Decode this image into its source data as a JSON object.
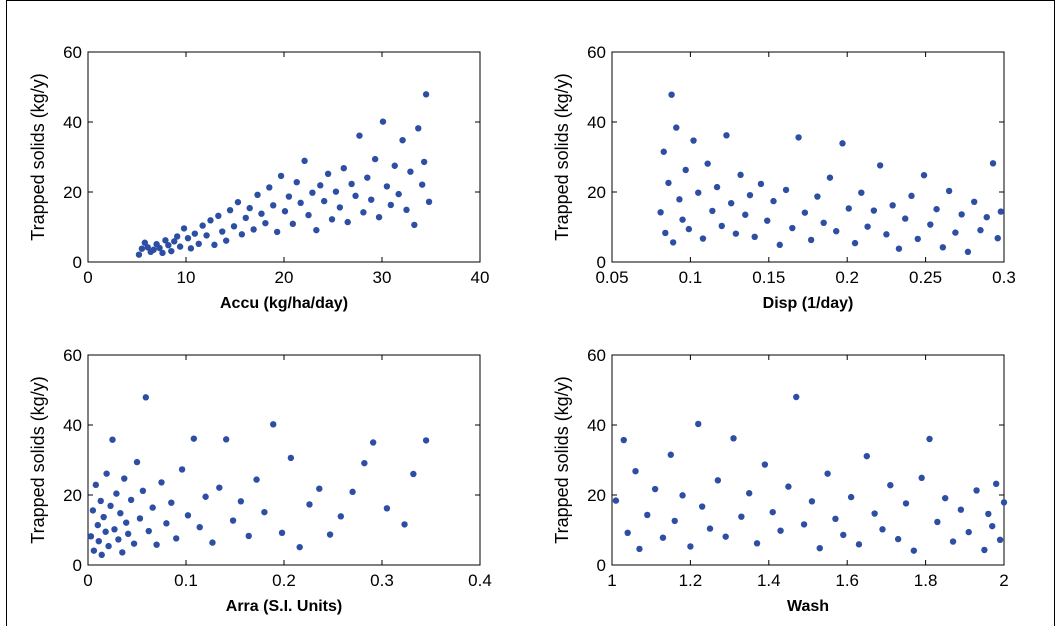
{
  "chart_data": [
    {
      "type": "scatter",
      "xlabel": "Accu (kg/ha/day)",
      "ylabel": "Trapped solids (kg/y)",
      "xlim": [
        0,
        40
      ],
      "ylim": [
        0,
        60
      ],
      "xticks": [
        "0",
        "10",
        "20",
        "30",
        "40"
      ],
      "yticks": [
        "0",
        "20",
        "40",
        "60"
      ],
      "color": "#2d4fa3",
      "points": [
        [
          5.2,
          2.1
        ],
        [
          5.5,
          3.8
        ],
        [
          5.8,
          5.5
        ],
        [
          6.1,
          4.2
        ],
        [
          6.4,
          2.9
        ],
        [
          6.7,
          3.5
        ],
        [
          7.0,
          5.1
        ],
        [
          7.3,
          4.0
        ],
        [
          7.6,
          2.6
        ],
        [
          7.9,
          6.2
        ],
        [
          8.2,
          4.8
        ],
        [
          8.5,
          3.1
        ],
        [
          8.8,
          5.9
        ],
        [
          9.1,
          7.3
        ],
        [
          9.4,
          4.4
        ],
        [
          9.8,
          9.6
        ],
        [
          10.2,
          6.8
        ],
        [
          10.5,
          3.9
        ],
        [
          10.9,
          8.1
        ],
        [
          11.3,
          5.2
        ],
        [
          11.7,
          10.4
        ],
        [
          12.1,
          7.6
        ],
        [
          12.5,
          11.9
        ],
        [
          12.9,
          4.9
        ],
        [
          13.3,
          13.2
        ],
        [
          13.7,
          8.7
        ],
        [
          14.1,
          6.1
        ],
        [
          14.5,
          14.8
        ],
        [
          14.9,
          10.2
        ],
        [
          15.3,
          17.1
        ],
        [
          15.7,
          7.9
        ],
        [
          16.1,
          12.6
        ],
        [
          16.5,
          15.4
        ],
        [
          16.9,
          9.3
        ],
        [
          17.3,
          19.2
        ],
        [
          17.7,
          13.8
        ],
        [
          18.1,
          11.1
        ],
        [
          18.5,
          21.3
        ],
        [
          18.9,
          16.2
        ],
        [
          19.3,
          8.6
        ],
        [
          19.7,
          24.6
        ],
        [
          20.1,
          14.5
        ],
        [
          20.5,
          18.7
        ],
        [
          20.9,
          10.9
        ],
        [
          21.3,
          22.8
        ],
        [
          21.7,
          16.9
        ],
        [
          22.1,
          28.9
        ],
        [
          22.5,
          13.4
        ],
        [
          22.9,
          19.8
        ],
        [
          23.3,
          9.1
        ],
        [
          23.7,
          21.9
        ],
        [
          24.1,
          17.4
        ],
        [
          24.5,
          25.2
        ],
        [
          24.9,
          12.2
        ],
        [
          25.3,
          20.1
        ],
        [
          25.7,
          15.6
        ],
        [
          26.1,
          26.8
        ],
        [
          26.5,
          11.4
        ],
        [
          26.9,
          22.3
        ],
        [
          27.3,
          18.9
        ],
        [
          27.7,
          36.1
        ],
        [
          28.1,
          14.2
        ],
        [
          28.5,
          24.1
        ],
        [
          28.9,
          17.8
        ],
        [
          29.3,
          29.4
        ],
        [
          29.7,
          12.8
        ],
        [
          30.1,
          40.1
        ],
        [
          30.5,
          21.6
        ],
        [
          30.9,
          16.3
        ],
        [
          31.3,
          27.5
        ],
        [
          31.7,
          19.4
        ],
        [
          32.1,
          34.8
        ],
        [
          32.5,
          14.9
        ],
        [
          32.9,
          25.8
        ],
        [
          33.3,
          10.6
        ],
        [
          33.7,
          38.2
        ],
        [
          34.1,
          22.1
        ],
        [
          34.5,
          47.9
        ],
        [
          34.8,
          17.2
        ],
        [
          34.3,
          28.6
        ]
      ]
    },
    {
      "type": "scatter",
      "xlabel": "Disp (1/day)",
      "ylabel": "Trapped solids (kg/y)",
      "xlim": [
        0.05,
        0.3
      ],
      "ylim": [
        0,
        60
      ],
      "xticks": [
        "0.05",
        "0.1",
        "0.15",
        "0.2",
        "0.25",
        "0.3"
      ],
      "yticks": [
        "0",
        "20",
        "40",
        "60"
      ],
      "color": "#2d4fa3",
      "points": [
        [
          0.081,
          14.2
        ],
        [
          0.083,
          31.5
        ],
        [
          0.084,
          8.3
        ],
        [
          0.086,
          22.6
        ],
        [
          0.088,
          47.8
        ],
        [
          0.089,
          5.6
        ],
        [
          0.091,
          38.4
        ],
        [
          0.093,
          17.9
        ],
        [
          0.095,
          12.1
        ],
        [
          0.097,
          26.3
        ],
        [
          0.099,
          9.4
        ],
        [
          0.102,
          34.7
        ],
        [
          0.105,
          19.8
        ],
        [
          0.108,
          6.7
        ],
        [
          0.111,
          28.1
        ],
        [
          0.114,
          14.6
        ],
        [
          0.117,
          21.4
        ],
        [
          0.12,
          10.3
        ],
        [
          0.123,
          36.2
        ],
        [
          0.126,
          16.8
        ],
        [
          0.129,
          8.1
        ],
        [
          0.132,
          24.9
        ],
        [
          0.135,
          13.5
        ],
        [
          0.138,
          19.1
        ],
        [
          0.141,
          7.2
        ],
        [
          0.145,
          22.3
        ],
        [
          0.149,
          11.8
        ],
        [
          0.153,
          17.4
        ],
        [
          0.157,
          4.9
        ],
        [
          0.161,
          20.6
        ],
        [
          0.165,
          9.7
        ],
        [
          0.169,
          35.6
        ],
        [
          0.173,
          14.1
        ],
        [
          0.177,
          6.3
        ],
        [
          0.181,
          18.7
        ],
        [
          0.185,
          11.2
        ],
        [
          0.189,
          24.1
        ],
        [
          0.193,
          8.8
        ],
        [
          0.197,
          33.9
        ],
        [
          0.201,
          15.3
        ],
        [
          0.205,
          5.4
        ],
        [
          0.209,
          19.8
        ],
        [
          0.213,
          10.1
        ],
        [
          0.217,
          14.7
        ],
        [
          0.221,
          27.6
        ],
        [
          0.225,
          7.9
        ],
        [
          0.229,
          16.2
        ],
        [
          0.233,
          3.8
        ],
        [
          0.237,
          12.4
        ],
        [
          0.241,
          18.9
        ],
        [
          0.245,
          6.6
        ],
        [
          0.249,
          24.8
        ],
        [
          0.253,
          10.7
        ],
        [
          0.257,
          15.1
        ],
        [
          0.261,
          4.2
        ],
        [
          0.265,
          20.3
        ],
        [
          0.269,
          8.4
        ],
        [
          0.273,
          13.6
        ],
        [
          0.277,
          2.9
        ],
        [
          0.281,
          17.2
        ],
        [
          0.285,
          9.1
        ],
        [
          0.289,
          12.8
        ],
        [
          0.293,
          28.2
        ],
        [
          0.296,
          6.8
        ],
        [
          0.298,
          14.4
        ]
      ]
    },
    {
      "type": "scatter",
      "xlabel": "Arra (S.I. Units)",
      "ylabel": "Trapped solids (kg/y)",
      "xlim": [
        0,
        0.4
      ],
      "ylim": [
        0,
        60
      ],
      "xticks": [
        "0",
        "0.1",
        "0.2",
        "0.3",
        "0.4"
      ],
      "yticks": [
        "0",
        "20",
        "40",
        "60"
      ],
      "color": "#2d4fa3",
      "points": [
        [
          0.003,
          8.2
        ],
        [
          0.005,
          15.6
        ],
        [
          0.006,
          4.1
        ],
        [
          0.008,
          22.9
        ],
        [
          0.01,
          11.4
        ],
        [
          0.011,
          6.8
        ],
        [
          0.013,
          18.3
        ],
        [
          0.014,
          2.9
        ],
        [
          0.016,
          13.7
        ],
        [
          0.018,
          9.5
        ],
        [
          0.019,
          26.1
        ],
        [
          0.021,
          5.4
        ],
        [
          0.023,
          16.9
        ],
        [
          0.025,
          35.8
        ],
        [
          0.027,
          10.2
        ],
        [
          0.029,
          20.4
        ],
        [
          0.031,
          7.3
        ],
        [
          0.033,
          14.8
        ],
        [
          0.035,
          3.6
        ],
        [
          0.037,
          24.7
        ],
        [
          0.039,
          12.1
        ],
        [
          0.041,
          8.9
        ],
        [
          0.044,
          18.6
        ],
        [
          0.047,
          6.1
        ],
        [
          0.05,
          29.4
        ],
        [
          0.053,
          13.3
        ],
        [
          0.056,
          21.2
        ],
        [
          0.059,
          47.9
        ],
        [
          0.062,
          9.7
        ],
        [
          0.066,
          16.4
        ],
        [
          0.07,
          5.8
        ],
        [
          0.075,
          23.6
        ],
        [
          0.08,
          11.9
        ],
        [
          0.085,
          17.8
        ],
        [
          0.09,
          7.6
        ],
        [
          0.096,
          27.3
        ],
        [
          0.102,
          14.2
        ],
        [
          0.108,
          36.1
        ],
        [
          0.114,
          10.8
        ],
        [
          0.12,
          19.5
        ],
        [
          0.127,
          6.4
        ],
        [
          0.134,
          22.1
        ],
        [
          0.141,
          35.9
        ],
        [
          0.148,
          12.7
        ],
        [
          0.156,
          18.2
        ],
        [
          0.164,
          8.3
        ],
        [
          0.172,
          24.4
        ],
        [
          0.18,
          15.1
        ],
        [
          0.189,
          40.2
        ],
        [
          0.198,
          9.2
        ],
        [
          0.207,
          30.6
        ],
        [
          0.216,
          5.1
        ],
        [
          0.226,
          17.3
        ],
        [
          0.236,
          21.8
        ],
        [
          0.247,
          8.7
        ],
        [
          0.258,
          13.9
        ],
        [
          0.27,
          20.9
        ],
        [
          0.282,
          29.1
        ],
        [
          0.291,
          35.0
        ],
        [
          0.305,
          16.2
        ],
        [
          0.323,
          11.6
        ],
        [
          0.332,
          26.0
        ],
        [
          0.345,
          35.6
        ]
      ]
    },
    {
      "type": "scatter",
      "xlabel": "Wash",
      "ylabel": "Trapped solids (kg/y)",
      "xlim": [
        1,
        2
      ],
      "ylim": [
        0,
        60
      ],
      "xticks": [
        "1",
        "1.2",
        "1.4",
        "1.6",
        "1.8",
        "2"
      ],
      "yticks": [
        "0",
        "20",
        "40",
        "60"
      ],
      "color": "#2d4fa3",
      "points": [
        [
          1.01,
          18.4
        ],
        [
          1.03,
          35.7
        ],
        [
          1.04,
          9.2
        ],
        [
          1.06,
          26.8
        ],
        [
          1.07,
          4.6
        ],
        [
          1.09,
          14.3
        ],
        [
          1.11,
          21.7
        ],
        [
          1.13,
          7.8
        ],
        [
          1.15,
          31.5
        ],
        [
          1.16,
          12.6
        ],
        [
          1.18,
          19.9
        ],
        [
          1.2,
          5.3
        ],
        [
          1.22,
          40.3
        ],
        [
          1.23,
          16.7
        ],
        [
          1.25,
          10.4
        ],
        [
          1.27,
          24.2
        ],
        [
          1.29,
          8.1
        ],
        [
          1.31,
          36.2
        ],
        [
          1.33,
          13.8
        ],
        [
          1.35,
          20.5
        ],
        [
          1.37,
          6.2
        ],
        [
          1.39,
          28.7
        ],
        [
          1.41,
          15.1
        ],
        [
          1.43,
          9.8
        ],
        [
          1.45,
          22.4
        ],
        [
          1.47,
          48.0
        ],
        [
          1.49,
          11.6
        ],
        [
          1.51,
          18.2
        ],
        [
          1.53,
          4.8
        ],
        [
          1.55,
          26.1
        ],
        [
          1.57,
          13.2
        ],
        [
          1.59,
          8.6
        ],
        [
          1.61,
          19.4
        ],
        [
          1.63,
          5.9
        ],
        [
          1.65,
          31.1
        ],
        [
          1.67,
          14.7
        ],
        [
          1.69,
          10.2
        ],
        [
          1.71,
          22.8
        ],
        [
          1.73,
          7.4
        ],
        [
          1.75,
          17.6
        ],
        [
          1.77,
          4.1
        ],
        [
          1.79,
          24.9
        ],
        [
          1.81,
          36.0
        ],
        [
          1.83,
          12.3
        ],
        [
          1.85,
          19.1
        ],
        [
          1.87,
          6.7
        ],
        [
          1.89,
          15.8
        ],
        [
          1.91,
          9.4
        ],
        [
          1.93,
          21.3
        ],
        [
          1.95,
          4.3
        ],
        [
          1.96,
          14.6
        ],
        [
          1.97,
          11.1
        ],
        [
          1.98,
          23.2
        ],
        [
          1.99,
          7.2
        ],
        [
          2.0,
          17.9
        ]
      ]
    }
  ]
}
